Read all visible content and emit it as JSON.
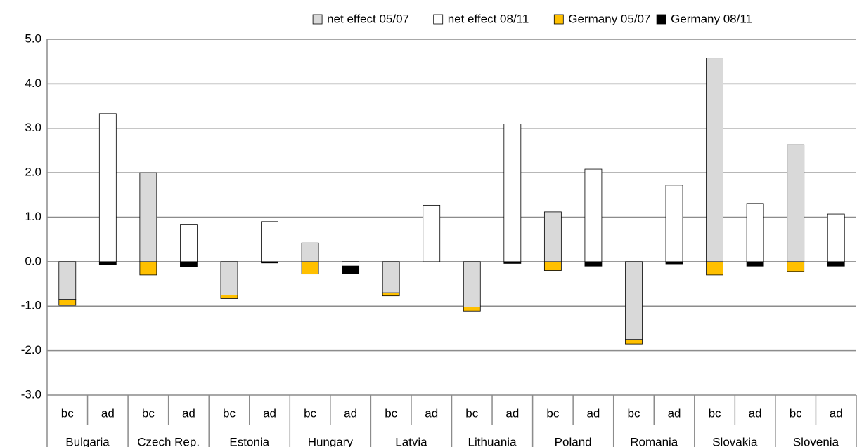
{
  "chart_data": {
    "type": "stacked-bar",
    "categories": [
      "bc",
      "ad",
      "bc",
      "ad",
      "bc",
      "ad",
      "bc",
      "ad",
      "bc",
      "ad",
      "bc",
      "ad",
      "bc",
      "ad",
      "bc",
      "ad",
      "bc",
      "ad",
      "bc",
      "ad"
    ],
    "groups": [
      "Bulgaria",
      "Czech Rep.",
      "Estonia",
      "Hungary",
      "Latvia",
      "Lithuania",
      "Poland",
      "Romania",
      "Slovakia",
      "Slovenia"
    ],
    "series": [
      {
        "name": "net effect 05/07",
        "color": "#d9d9d9",
        "values": [
          -0.85,
          null,
          2.0,
          null,
          -0.75,
          null,
          0.42,
          null,
          -0.7,
          null,
          -1.02,
          null,
          1.12,
          null,
          -1.75,
          null,
          4.58,
          null,
          2.63,
          null
        ]
      },
      {
        "name": "net effect 08/11",
        "color": "#ffffff",
        "values": [
          null,
          3.33,
          null,
          0.84,
          null,
          0.9,
          null,
          -0.1,
          null,
          1.27,
          null,
          3.1,
          null,
          2.08,
          null,
          1.72,
          null,
          1.31,
          null,
          1.07
        ]
      },
      {
        "name": "Germany 05/07",
        "color": "#ffc000",
        "values": [
          -0.13,
          null,
          -0.3,
          null,
          -0.08,
          null,
          -0.28,
          null,
          -0.07,
          null,
          -0.09,
          null,
          -0.2,
          null,
          -0.1,
          null,
          -0.3,
          null,
          -0.22,
          null
        ]
      },
      {
        "name": "Germany 08/11",
        "color": "#000000",
        "values": [
          null,
          -0.07,
          null,
          -0.12,
          null,
          -0.03,
          null,
          -0.17,
          null,
          0,
          null,
          -0.04,
          null,
          -0.1,
          null,
          -0.05,
          null,
          -0.1,
          null,
          -0.1
        ]
      }
    ],
    "ylim": [
      -3,
      5
    ],
    "yticks": [
      {
        "value": -3,
        "label": "-3.0"
      },
      {
        "value": -2,
        "label": "-2.0"
      },
      {
        "value": -1,
        "label": "-1.0"
      },
      {
        "value": 0,
        "label": "0.0"
      },
      {
        "value": 1,
        "label": "1.0"
      },
      {
        "value": 2,
        "label": "2.0"
      },
      {
        "value": 3,
        "label": "3.0"
      },
      {
        "value": 4,
        "label": "4.0"
      },
      {
        "value": 5,
        "label": "5.0"
      }
    ],
    "grid": true,
    "legend": "top"
  }
}
